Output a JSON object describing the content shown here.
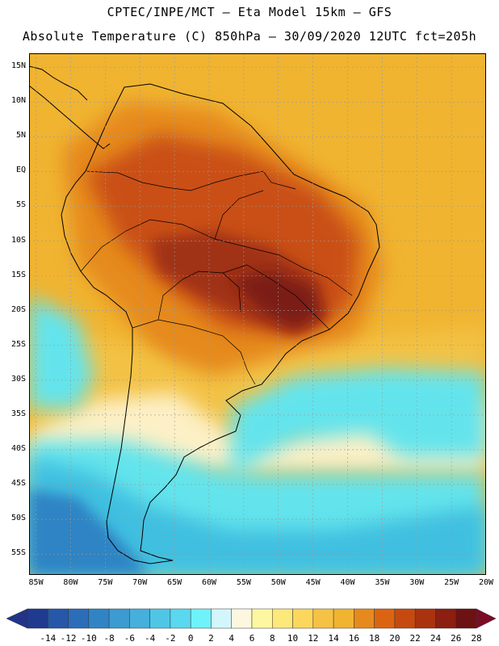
{
  "header": {
    "line1": "CPTEC/INPE/MCT –  Eta Model 15km – GFS",
    "line2": "Absolute Temperature (C) 850hPa – 30/09/2020 12UTC fct=205h"
  },
  "map": {
    "lat_labels": [
      "15N",
      "10N",
      "5N",
      "EQ",
      "5S",
      "10S",
      "15S",
      "20S",
      "25S",
      "30S",
      "35S",
      "40S",
      "45S",
      "50S",
      "55S"
    ],
    "lon_labels": [
      "85W",
      "80W",
      "75W",
      "70W",
      "65W",
      "60W",
      "55W",
      "50W",
      "45W",
      "40W",
      "35W",
      "30W",
      "25W",
      "20W"
    ],
    "lat_range": [
      -58,
      17
    ],
    "lon_range": [
      -86,
      -20
    ],
    "colors": {
      "ocean_north": "#f0b431",
      "land_hot": "#c95012",
      "land_very_hot": "#a03212",
      "warm_band": "#f3c245",
      "pale": "#fdf0c6",
      "cyan": "#64e4ec",
      "blue": "#3fbfe0",
      "deep_blue": "#2d84c4"
    }
  },
  "colorbar": {
    "labels": [
      "-14",
      "-12",
      "-10",
      "-8",
      "-6",
      "-4",
      "-2",
      "0",
      "2",
      "4",
      "6",
      "8",
      "10",
      "12",
      "14",
      "16",
      "18",
      "20",
      "22",
      "24",
      "26",
      "28"
    ],
    "colors": [
      "#1f3a8f",
      "#2757a8",
      "#2b6db8",
      "#3184c4",
      "#3c9bd0",
      "#46afdb",
      "#50c6e6",
      "#5ad8ef",
      "#6ff2fa",
      "#d3f6fc",
      "#fdf7df",
      "#fdf7a1",
      "#fde979",
      "#fbd75d",
      "#f5c245",
      "#f0b431",
      "#e68a1d",
      "#dc6410",
      "#c64a0f",
      "#a9330f",
      "#8a1f12",
      "#6c1212"
    ],
    "extend_low": "#23338a",
    "extend_high": "#7c0c24"
  }
}
